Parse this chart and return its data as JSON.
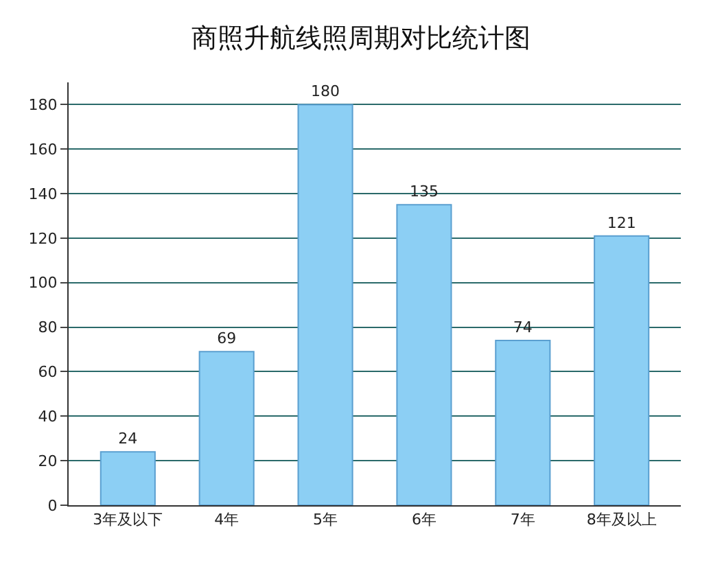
{
  "chart_data": {
    "type": "bar",
    "title": "商照升航线照周期对比统计图",
    "categories": [
      "3年及以下",
      "4年",
      "5年",
      "6年",
      "7年",
      "8年及以上"
    ],
    "values": [
      24,
      69,
      180,
      135,
      74,
      121
    ],
    "color": "#8ccff4",
    "ylim": [
      0,
      190
    ],
    "yticks": [
      0,
      20,
      40,
      60,
      80,
      100,
      120,
      140,
      160,
      180
    ],
    "grid": "y",
    "data_labels": true
  }
}
